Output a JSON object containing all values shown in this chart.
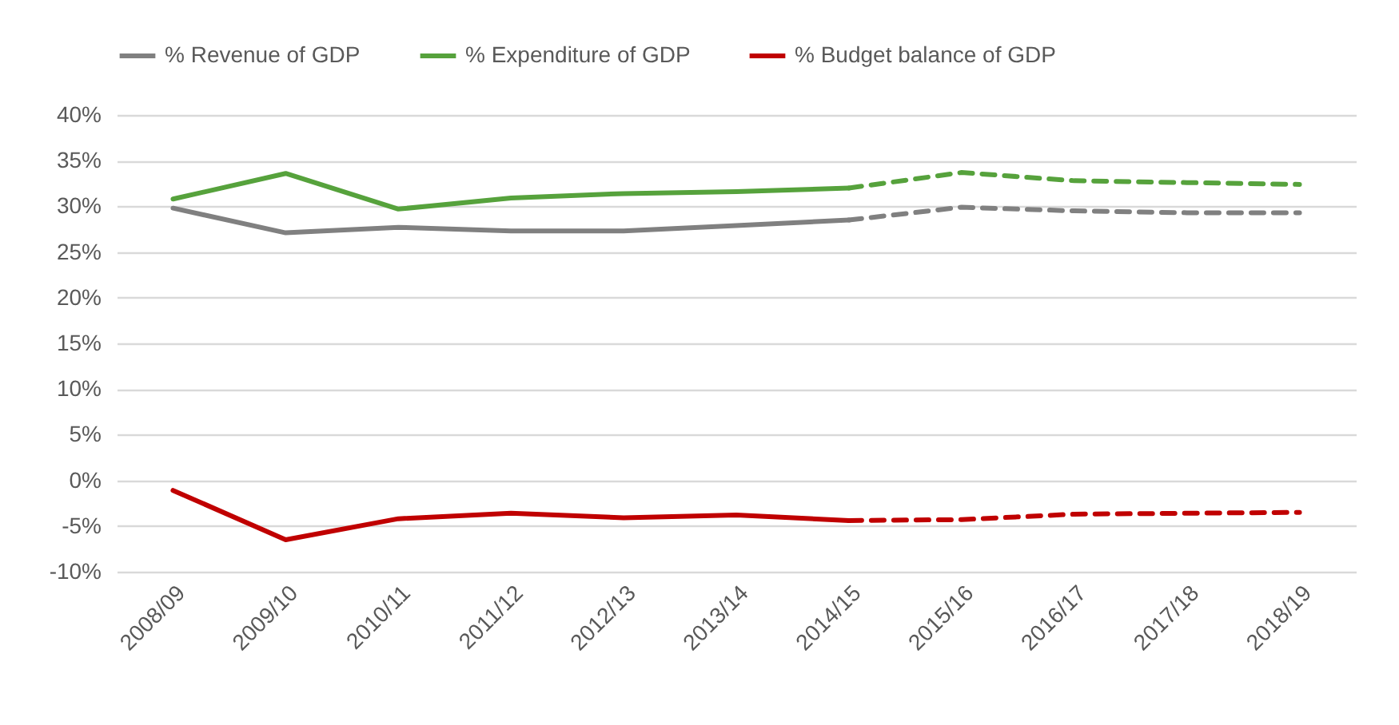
{
  "chart_data": {
    "type": "line",
    "categories": [
      "2008/09",
      "2009/10",
      "2010/11",
      "2011/12",
      "2012/13",
      "2013/14",
      "2014/15",
      "2015/16",
      "2016/17",
      "2017/18",
      "2018/19"
    ],
    "series": [
      {
        "name": "% Revenue of GDP",
        "color": "#808080",
        "line_style": "solid",
        "values": [
          29.8,
          27.1,
          27.7,
          27.3,
          27.3,
          27.9,
          28.5,
          null,
          null,
          null,
          null
        ]
      },
      {
        "name": "% Expenditure of GDP",
        "color": "#56a23c",
        "line_style": "solid",
        "values": [
          30.8,
          33.6,
          29.7,
          30.9,
          31.4,
          31.6,
          32.0,
          null,
          null,
          null,
          null
        ]
      },
      {
        "name": "% Budget balance of GDP",
        "color": "#c00000",
        "line_style": "solid",
        "values": [
          -1.1,
          -6.5,
          -4.2,
          -3.6,
          -4.1,
          -3.8,
          -4.4,
          null,
          null,
          null,
          null
        ]
      },
      {
        "color": "#808080",
        "line_style": "dashed",
        "values": [
          null,
          null,
          null,
          null,
          null,
          null,
          28.5,
          29.9,
          29.5,
          29.3,
          29.3
        ]
      },
      {
        "color": "#56a23c",
        "line_style": "dashed",
        "values": [
          null,
          null,
          null,
          null,
          null,
          null,
          32.0,
          33.7,
          32.8,
          32.6,
          32.4
        ]
      },
      {
        "color": "#c00000",
        "line_style": "dashed",
        "values": [
          null,
          null,
          null,
          null,
          null,
          null,
          -4.4,
          -4.3,
          -3.7,
          -3.6,
          -3.5
        ]
      }
    ],
    "ylim": [
      -10,
      40
    ],
    "yticks": [
      {
        "value": -10,
        "label": "-10%"
      },
      {
        "value": -5,
        "label": "-5%"
      },
      {
        "value": 0,
        "label": "0%"
      },
      {
        "value": 5,
        "label": "5%"
      },
      {
        "value": 10,
        "label": "10%"
      },
      {
        "value": 15,
        "label": "15%"
      },
      {
        "value": 20,
        "label": "20%"
      },
      {
        "value": 25,
        "label": "25%"
      },
      {
        "value": 30,
        "label": "30%"
      },
      {
        "value": 35,
        "label": "35%"
      },
      {
        "value": 40,
        "label": "40%"
      }
    ],
    "grid": "y",
    "legend": "top",
    "marker": "none"
  }
}
